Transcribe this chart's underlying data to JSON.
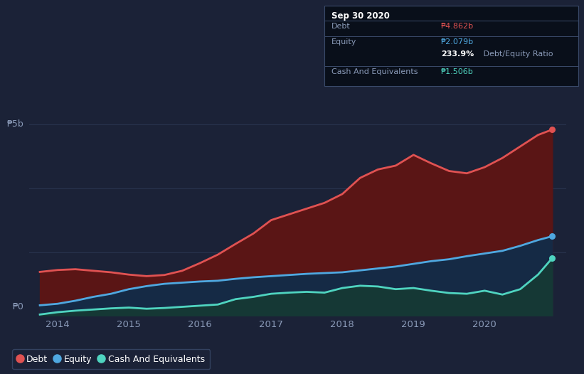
{
  "background_color": "#1b2237",
  "plot_bg_color": "#1b2237",
  "grid_color": "#2a3550",
  "title_box": {
    "date": "Sep 30 2020",
    "debt_label": "Debt",
    "debt_value": "₱4.862b",
    "equity_label": "Equity",
    "equity_value": "₱2.079b",
    "ratio_bold": "233.9%",
    "ratio_rest": " Debt/Equity Ratio",
    "cash_label": "Cash And Equivalents",
    "cash_value": "₱1.506b",
    "bg_color": "#090f1a",
    "border_color": "#3a4a6a",
    "debt_color": "#e05252",
    "equity_color": "#4fa8e0",
    "cash_color": "#4fd4c0",
    "label_color": "#8a9ab8"
  },
  "y_label_5b": "₱5b",
  "y_label_0": "₱0",
  "x_ticks": [
    2014,
    2015,
    2016,
    2017,
    2018,
    2019,
    2020
  ],
  "ylim": [
    0,
    5.8
  ],
  "xlim": [
    2013.6,
    2021.15
  ],
  "debt_color": "#e05252",
  "equity_color": "#4fa8e0",
  "cash_color": "#4fd4c0",
  "debt_fill": "#5a1515",
  "equity_fill": "#152a45",
  "cash_fill": "#153835",
  "line_width": 2.0,
  "debt_x": [
    2013.75,
    2014.0,
    2014.25,
    2014.5,
    2014.75,
    2015.0,
    2015.25,
    2015.5,
    2015.75,
    2016.0,
    2016.25,
    2016.5,
    2016.75,
    2017.0,
    2017.25,
    2017.5,
    2017.75,
    2018.0,
    2018.25,
    2018.5,
    2018.75,
    2019.0,
    2019.25,
    2019.5,
    2019.75,
    2020.0,
    2020.25,
    2020.5,
    2020.75,
    2020.95
  ],
  "debt_y": [
    1.15,
    1.2,
    1.22,
    1.18,
    1.14,
    1.08,
    1.04,
    1.07,
    1.18,
    1.38,
    1.6,
    1.88,
    2.15,
    2.5,
    2.65,
    2.8,
    2.95,
    3.18,
    3.6,
    3.82,
    3.92,
    4.2,
    3.98,
    3.78,
    3.72,
    3.88,
    4.12,
    4.42,
    4.72,
    4.86
  ],
  "equity_x": [
    2013.75,
    2014.0,
    2014.25,
    2014.5,
    2014.75,
    2015.0,
    2015.25,
    2015.5,
    2015.75,
    2016.0,
    2016.25,
    2016.5,
    2016.75,
    2017.0,
    2017.25,
    2017.5,
    2017.75,
    2018.0,
    2018.25,
    2018.5,
    2018.75,
    2019.0,
    2019.25,
    2019.5,
    2019.75,
    2020.0,
    2020.25,
    2020.5,
    2020.75,
    2020.95
  ],
  "equity_y": [
    0.28,
    0.32,
    0.4,
    0.5,
    0.58,
    0.7,
    0.78,
    0.84,
    0.87,
    0.9,
    0.92,
    0.97,
    1.01,
    1.04,
    1.07,
    1.1,
    1.12,
    1.14,
    1.19,
    1.24,
    1.29,
    1.36,
    1.43,
    1.48,
    1.56,
    1.63,
    1.7,
    1.83,
    1.98,
    2.08
  ],
  "cash_x": [
    2013.75,
    2014.0,
    2014.25,
    2014.5,
    2014.75,
    2015.0,
    2015.25,
    2015.5,
    2015.75,
    2016.0,
    2016.25,
    2016.5,
    2016.75,
    2017.0,
    2017.25,
    2017.5,
    2017.75,
    2018.0,
    2018.25,
    2018.5,
    2018.75,
    2019.0,
    2019.25,
    2019.5,
    2019.75,
    2020.0,
    2020.25,
    2020.5,
    2020.75,
    2020.95
  ],
  "cash_y": [
    0.04,
    0.1,
    0.14,
    0.17,
    0.2,
    0.22,
    0.19,
    0.21,
    0.24,
    0.27,
    0.3,
    0.44,
    0.5,
    0.58,
    0.61,
    0.63,
    0.61,
    0.73,
    0.79,
    0.77,
    0.7,
    0.73,
    0.66,
    0.6,
    0.58,
    0.66,
    0.56,
    0.7,
    1.08,
    1.51
  ],
  "legend_items": [
    {
      "label": "Debt",
      "color": "#e05252"
    },
    {
      "label": "Equity",
      "color": "#4fa8e0"
    },
    {
      "label": "Cash And Equivalents",
      "color": "#4fd4c0"
    }
  ],
  "legend_bg": "#1b2237",
  "legend_border": "#3a4a6a"
}
